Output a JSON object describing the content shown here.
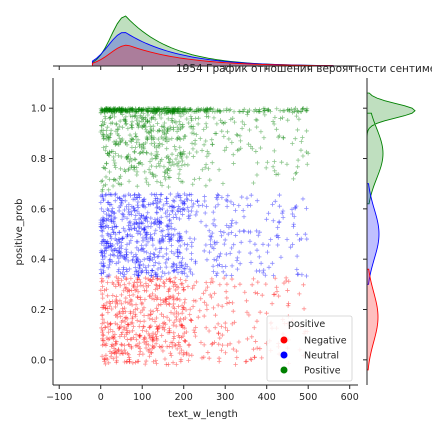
{
  "chart_data": {
    "type": "scatter",
    "title": "1954 График отношения вероятности сентиме",
    "xlabel": "text_w_length",
    "ylabel": "positive_prob",
    "xlim": [
      -115,
      620
    ],
    "ylim": [
      -0.1,
      1.12
    ],
    "xticks": [
      -100,
      0,
      100,
      200,
      300,
      400,
      500,
      600
    ],
    "yticks": [
      0.0,
      0.2,
      0.4,
      0.6,
      0.8,
      1.0
    ],
    "xtick_labels": [
      "−100",
      "0",
      "100",
      "200",
      "300",
      "400",
      "500",
      "600"
    ],
    "ytick_labels": [
      "0.0",
      "0.2",
      "0.4",
      "0.6",
      "0.8",
      "1.0"
    ],
    "marker": "+",
    "legend": {
      "title": "positive",
      "position": "lower right",
      "entries": [
        "Negative",
        "Neutral",
        "Positive"
      ]
    },
    "series": [
      {
        "name": "Negative",
        "color": "#ff0000",
        "y_range": [
          -0.02,
          0.33
        ],
        "x_range": [
          0,
          500
        ],
        "density": "concentrated at short text lengths, sparse beyond 200"
      },
      {
        "name": "Neutral",
        "color": "#0000ff",
        "y_range": [
          0.33,
          0.66
        ],
        "x_range": [
          0,
          500
        ],
        "density": "concentrated at short text lengths, sparse beyond 200"
      },
      {
        "name": "Positive",
        "color": "#008000",
        "y_range": [
          0.66,
          1.0
        ],
        "x_range": [
          0,
          500
        ],
        "density": "heavy cluster at y=1.0, concentrated at short text lengths"
      }
    ],
    "marginal_x": {
      "type": "kde",
      "peak_x": 60,
      "order_back_to_front": [
        "Positive",
        "Neutral",
        "Negative"
      ]
    },
    "marginal_y": {
      "type": "kde",
      "Positive_peak_y": 0.99,
      "Neutral_peak_y": 0.5,
      "Negative_peak_y": 0.17
    },
    "grid": false
  }
}
